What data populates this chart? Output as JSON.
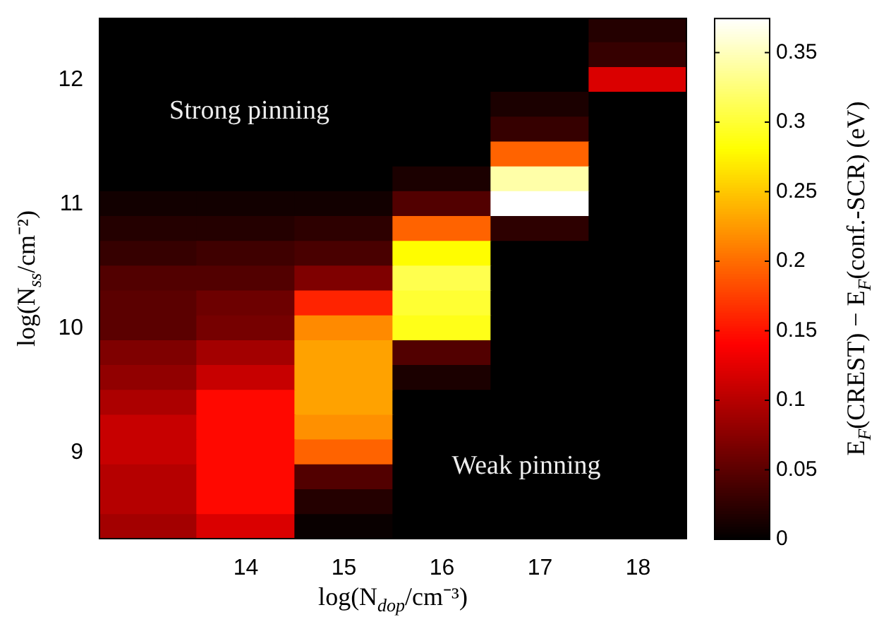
{
  "chart_data": {
    "type": "heatmap",
    "xlabel": "log(N$_{dop}$/cm⁻³)",
    "ylabel": "log(N$_{ss}$/cm⁻²)",
    "clabel": "E$_{F}$(CREST) − E$_{F}$(conf.-SCR) (eV)",
    "annotations": [
      "Strong pinning",
      "Weak pinning"
    ],
    "categories": [
      null,
      "14",
      "15",
      "16",
      "17",
      "18"
    ],
    "y_categories": [
      null,
      null,
      "12",
      null,
      null,
      null,
      null,
      "11",
      null,
      null,
      null,
      null,
      "10",
      null,
      null,
      null,
      null,
      "9",
      null,
      null,
      null
    ],
    "cells": [
      [
        0,
        0,
        0,
        0,
        0,
        0.02
      ],
      [
        0,
        0,
        0,
        0,
        0,
        0.03
      ],
      [
        0,
        0,
        0,
        0,
        0,
        0.12
      ],
      [
        0,
        0,
        0,
        0,
        0.015,
        0
      ],
      [
        0,
        0,
        0,
        0,
        0.03,
        0
      ],
      [
        0,
        0,
        0,
        0,
        0.195,
        0
      ],
      [
        0,
        0,
        0,
        0.015,
        0.343,
        0
      ],
      [
        0.01,
        0.01,
        0.01,
        0.045,
        0.375,
        0
      ],
      [
        0.02,
        0.02,
        0.025,
        0.195,
        0.025,
        0
      ],
      [
        0.03,
        0.035,
        0.04,
        0.28,
        0,
        0
      ],
      [
        0.045,
        0.045,
        0.07,
        0.31,
        0,
        0
      ],
      [
        0.05,
        0.06,
        0.16,
        0.3,
        0,
        0
      ],
      [
        0.05,
        0.065,
        0.217,
        0.29,
        0,
        0
      ],
      [
        0.07,
        0.09,
        0.23,
        0.045,
        0,
        0
      ],
      [
        0.08,
        0.11,
        0.23,
        0.015,
        0,
        0
      ],
      [
        0.095,
        0.145,
        0.23,
        0,
        0,
        0
      ],
      [
        0.11,
        0.145,
        0.22,
        0,
        0,
        0
      ],
      [
        0.11,
        0.145,
        0.195,
        0,
        0,
        0
      ],
      [
        0.1,
        0.145,
        0.045,
        0,
        0,
        0
      ],
      [
        0.1,
        0.145,
        0.02,
        0,
        0,
        0
      ],
      [
        0.09,
        0.12,
        0.005,
        0,
        0,
        0
      ]
    ],
    "clim": [
      0,
      0.375
    ],
    "cticks": [
      0,
      0.05,
      0.1,
      0.15,
      0.2,
      0.25,
      0.3,
      0.35
    ]
  }
}
